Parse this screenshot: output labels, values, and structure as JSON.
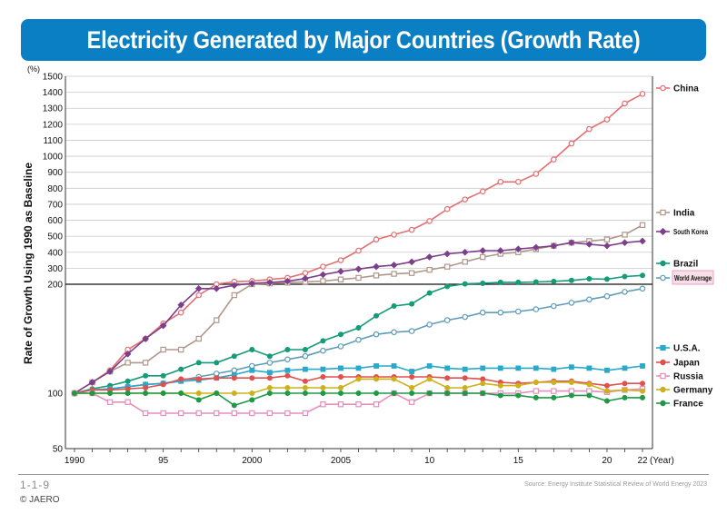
{
  "header": {
    "title": "Electricity Generated by Major Countries (Growth Rate)"
  },
  "footer": {
    "figure_number": "1-1-9",
    "copyright": "© JAERO",
    "source": "Source: Energy Institute Statistical Review of World Energy 2023"
  },
  "chart_data": {
    "type": "line",
    "ylabel": "Rate of Growth Using 1990 as Baseline",
    "yunit": "(%)",
    "xunit": "(Year)",
    "x": [
      1990,
      1991,
      1992,
      1993,
      1994,
      1995,
      1996,
      1997,
      1998,
      1999,
      2000,
      2001,
      2002,
      2003,
      2004,
      2005,
      2006,
      2007,
      2008,
      2009,
      2010,
      2011,
      2012,
      2013,
      2014,
      2015,
      2016,
      2017,
      2018,
      2019,
      2020,
      2021,
      2022
    ],
    "x_tick_labels": [
      "1990",
      "95",
      "2000",
      "2005",
      "10",
      "15",
      "20",
      "22"
    ],
    "x_tick_values": [
      1990,
      1995,
      2000,
      2005,
      2010,
      2015,
      2020,
      2022
    ],
    "y_scale": "linear above 200, compressed below 200 (50, 100, 200)",
    "y_ticks_upper": [
      200,
      300,
      400,
      500,
      600,
      700,
      800,
      900,
      1000,
      1100,
      1200,
      1300,
      1400,
      1500
    ],
    "y_ticks_lower": [
      50,
      100
    ],
    "ylim": [
      50,
      1500
    ],
    "baseline": 200,
    "series": [
      {
        "name": "China",
        "color": "#e46f72",
        "marker": "circle-open",
        "values": [
          100,
          110,
          121,
          140,
          150,
          164,
          174,
          190,
          200,
          216,
          220,
          230,
          240,
          270,
          310,
          350,
          410,
          480,
          510,
          540,
          595,
          670,
          730,
          780,
          840,
          840,
          890,
          980,
          1080,
          1170,
          1230,
          1330,
          1390
        ]
      },
      {
        "name": "India",
        "color": "#b0978a",
        "marker": "square-open",
        "values": [
          100,
          110,
          120,
          128,
          128,
          140,
          140,
          150,
          167,
          190,
          200,
          205,
          210,
          215,
          220,
          230,
          240,
          255,
          265,
          270,
          290,
          310,
          340,
          370,
          390,
          400,
          420,
          440,
          460,
          470,
          480,
          510,
          570
        ]
      },
      {
        "name": "South Korea",
        "color": "#7d3f8c",
        "marker": "diamond",
        "values": [
          100,
          110,
          120,
          136,
          150,
          162,
          181,
          196,
          196,
          199,
          205,
          211,
          219,
          236,
          260,
          280,
          295,
          310,
          320,
          340,
          370,
          390,
          400,
          410,
          410,
          420,
          430,
          440,
          460,
          450,
          440,
          460,
          470
        ]
      },
      {
        "name": "Brazil",
        "color": "#149b77",
        "marker": "circle",
        "values": [
          100,
          104,
          107,
          111,
          116,
          116,
          122,
          128,
          128,
          134,
          140,
          134,
          140,
          140,
          148,
          154,
          160,
          171,
          180,
          182,
          192,
          198,
          202,
          206,
          212,
          212,
          214,
          218,
          224,
          234,
          232,
          248,
          255
        ]
      },
      {
        "name": "World Average",
        "color": "#5e9cb7",
        "marker": "circle-open",
        "values": [
          100,
          103,
          104,
          106,
          108,
          109,
          112,
          115,
          118,
          121,
          125,
          128,
          131,
          134,
          139,
          143,
          149,
          154,
          156,
          157,
          163,
          167,
          170,
          174,
          174,
          175,
          177,
          180,
          183,
          186,
          189,
          193,
          196
        ]
      },
      {
        "name": "U.S.A.",
        "color": "#2aa9c9",
        "marker": "square",
        "values": [
          100,
          103,
          104,
          106,
          108,
          109,
          111,
          112,
          114,
          117,
          121,
          119,
          121,
          122,
          122,
          123,
          123,
          125,
          125,
          120,
          125,
          123,
          122,
          123,
          123,
          123,
          123,
          122,
          124,
          123,
          121,
          123,
          125
        ]
      },
      {
        "name": "Japan",
        "color": "#e0504f",
        "marker": "circle",
        "values": [
          100,
          103,
          103,
          104,
          105,
          108,
          113,
          113,
          114,
          114,
          114,
          114,
          116,
          111,
          115,
          115,
          115,
          115,
          115,
          115,
          115,
          114,
          114,
          113,
          110,
          109,
          110,
          111,
          111,
          109,
          107,
          109,
          109
        ]
      },
      {
        "name": "Russia",
        "color": "#e48fbd",
        "marker": "square-open",
        "values": [
          100,
          100,
          92,
          92,
          82,
          82,
          82,
          82,
          82,
          82,
          82,
          82,
          82,
          82,
          90,
          90,
          90,
          90,
          100,
          92,
          100,
          100,
          100,
          100,
          100,
          100,
          102,
          102,
          102,
          102,
          101,
          103,
          104
        ]
      },
      {
        "name": "Germany",
        "color": "#cdb11c",
        "marker": "circle",
        "values": [
          100,
          100,
          100,
          100,
          100,
          100,
          100,
          100,
          100,
          100,
          100,
          105,
          105,
          105,
          105,
          105,
          113,
          113,
          113,
          105,
          113,
          105,
          105,
          109,
          107,
          107,
          110,
          110,
          110,
          108,
          102,
          103,
          102
        ]
      },
      {
        "name": "France",
        "color": "#1e9a46",
        "marker": "circle",
        "values": [
          100,
          100,
          100,
          100,
          100,
          100,
          100,
          94,
          100,
          89,
          94,
          100,
          100,
          100,
          100,
          100,
          100,
          100,
          100,
          100,
          100,
          100,
          100,
          100,
          98,
          98,
          96,
          96,
          98,
          98,
          93,
          96,
          96
        ]
      }
    ]
  }
}
